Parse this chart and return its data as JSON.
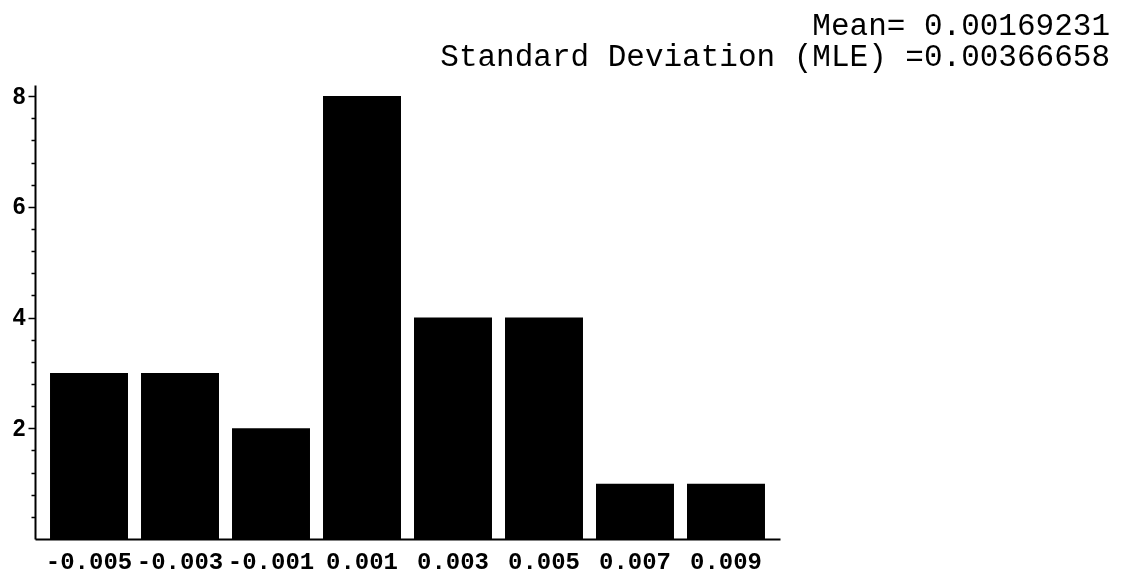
{
  "chart_data": {
    "type": "bar",
    "title": "Mean= 0.00169231",
    "subtitle": "Standard Deviation (MLE) =0.00366658",
    "categories": [
      "-0.005",
      "-0.003",
      "-0.001",
      "0.001",
      "0.003",
      "0.005",
      "0.007",
      "0.009"
    ],
    "values": [
      3,
      3,
      2,
      8,
      4,
      4,
      1,
      1
    ],
    "color": "#000000",
    "ylim": [
      0,
      8.2
    ],
    "yticks": [
      {
        "value": 0.4,
        "label": null
      },
      {
        "value": 0.8,
        "label": null
      },
      {
        "value": 1.2,
        "label": null
      },
      {
        "value": 1.6,
        "label": null
      },
      2,
      {
        "value": 2.4,
        "label": null
      },
      {
        "value": 2.8,
        "label": null
      },
      {
        "value": 3.2,
        "label": null
      },
      {
        "value": 3.6,
        "label": null
      },
      4,
      {
        "value": 4.4,
        "label": null
      },
      {
        "value": 4.8,
        "label": null
      },
      {
        "value": 5.2,
        "label": null
      },
      {
        "value": 5.6,
        "label": null
      },
      6,
      {
        "value": 6.4,
        "label": null
      },
      {
        "value": 6.8,
        "label": null
      },
      {
        "value": 7.2,
        "label": null
      },
      {
        "value": 7.6,
        "label": null
      },
      8
    ]
  }
}
